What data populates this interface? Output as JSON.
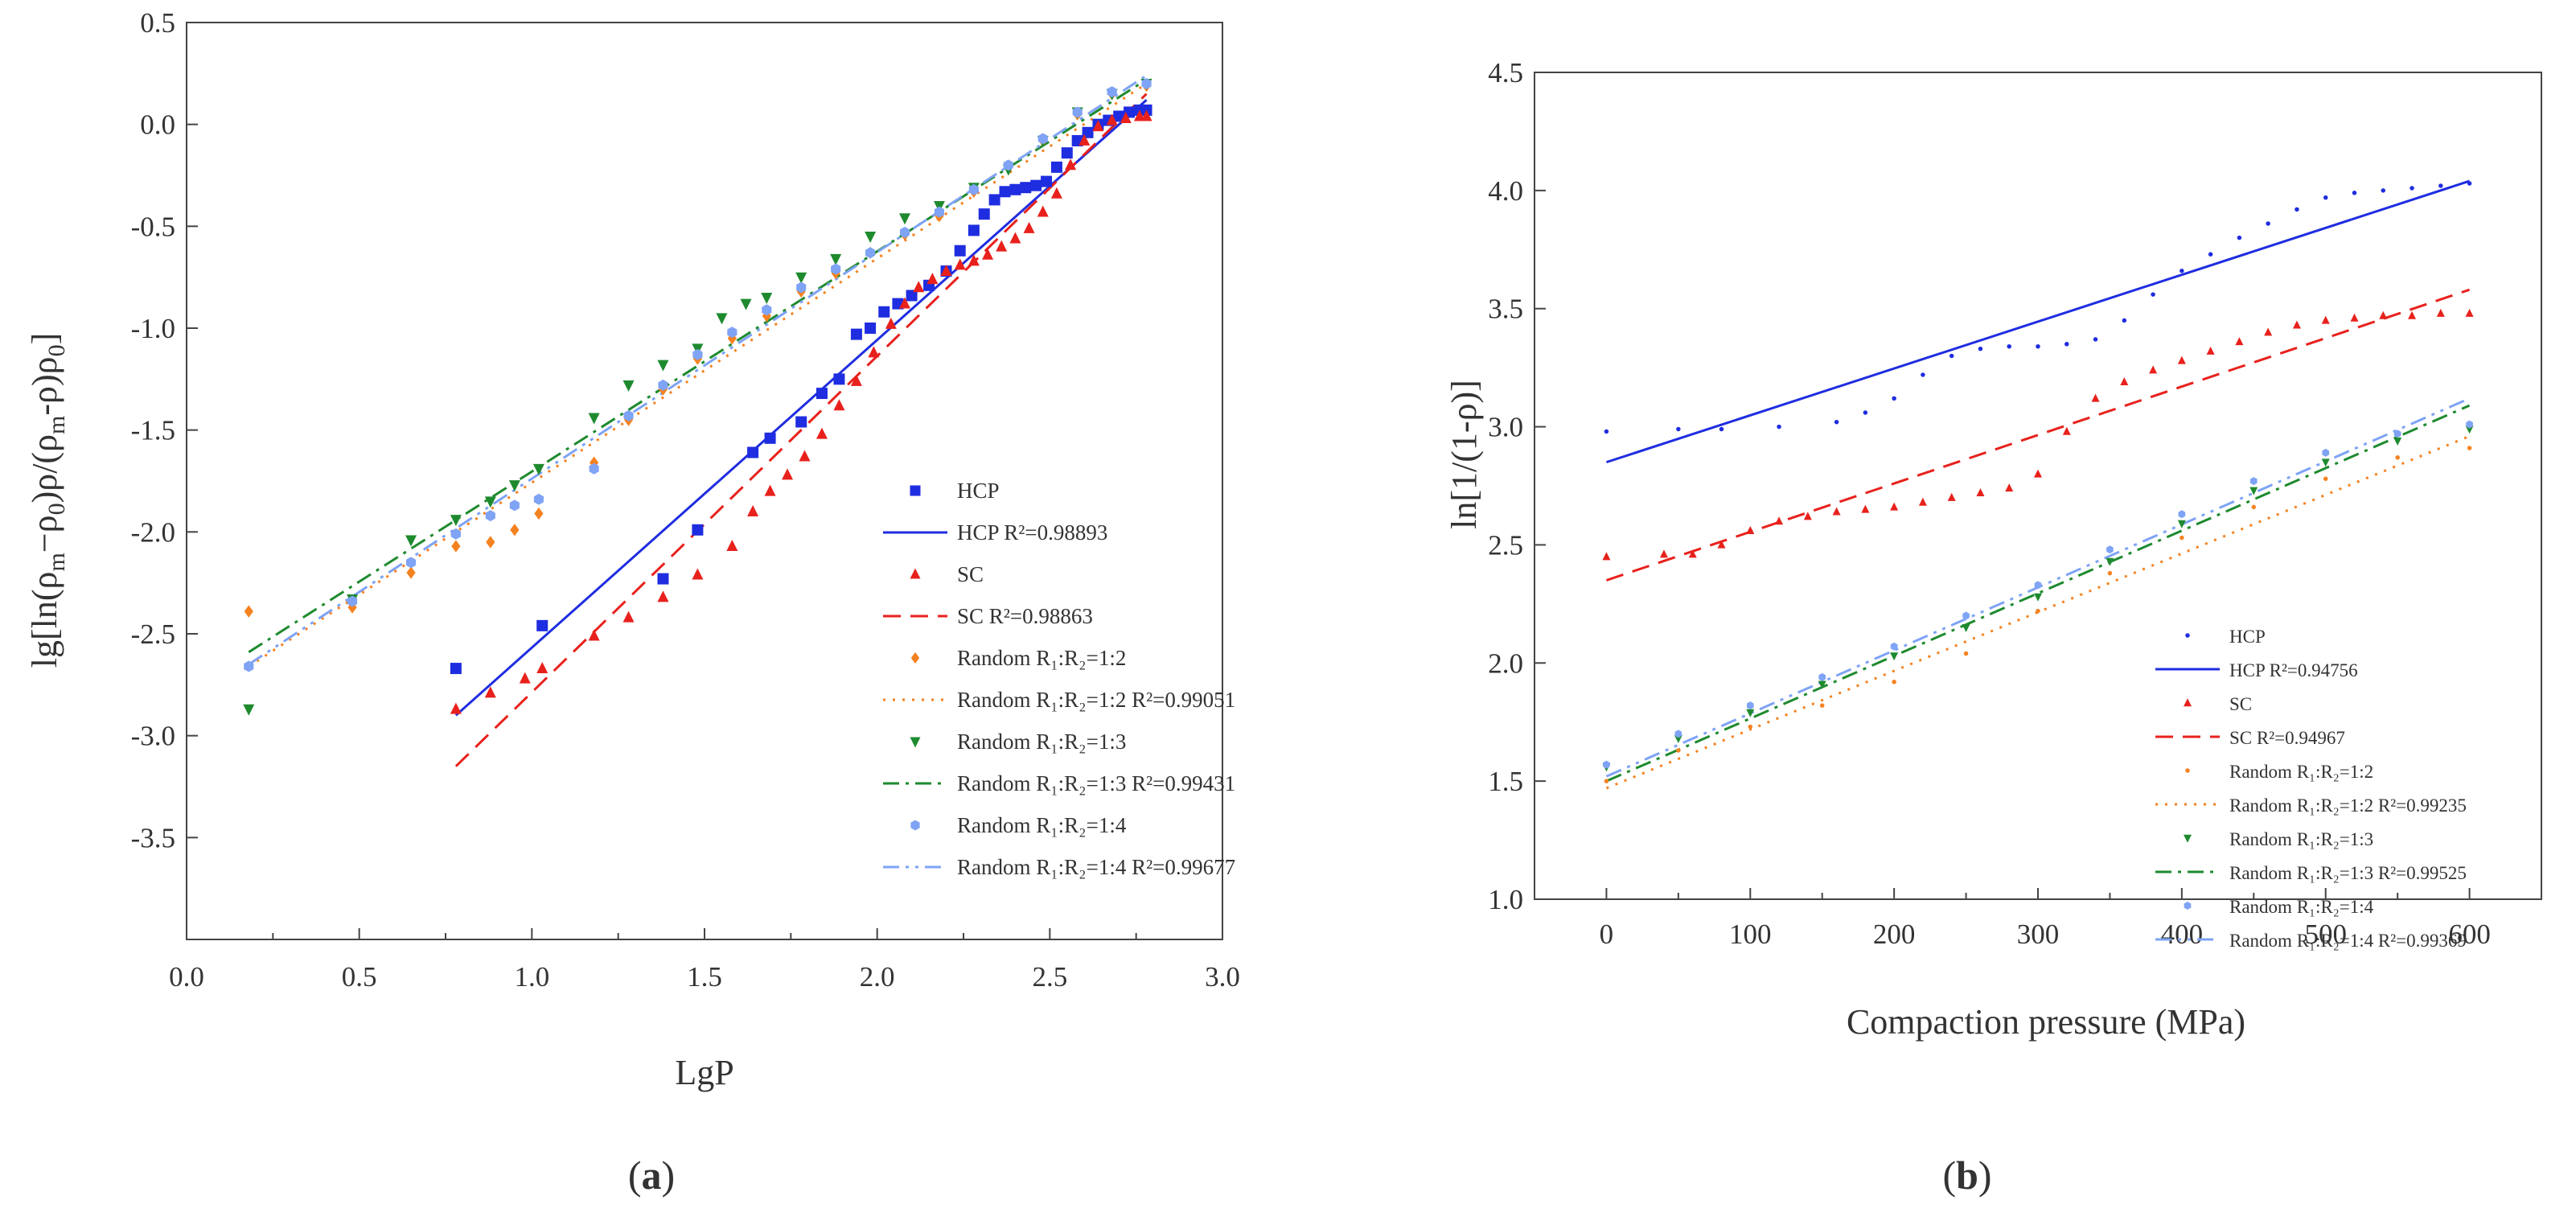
{
  "chart_data": [
    {
      "type": "scatter",
      "panel_label": "(a)",
      "panel_text": {
        "open": "(",
        "letter": "a",
        "close": ")"
      },
      "xlabel": "LgP",
      "ylabel": "lg[ln(ρm−ρ0)ρ/(ρm−ρ)ρ0]",
      "xlim": [
        0.0,
        3.0
      ],
      "ylim": [
        -4.0,
        0.5
      ],
      "xticks": [
        "0.0",
        "0.5",
        "1.0",
        "1.5",
        "2.0",
        "2.5",
        "3.0"
      ],
      "yticks": [
        "0.5",
        "0.0",
        "-0.5",
        "-1.0",
        "-1.5",
        "-2.0",
        "-2.5",
        "-3.0",
        "-3.5"
      ],
      "legend_position": "right",
      "legend": [
        "HCP",
        "HCP R²=0.98893",
        "SC",
        "SC R²=0.98863",
        "Random R₁:R₂=1:2",
        "Random R₁:R₂=1:2 R²=0.99051",
        "Random R₁:R₂=1:3",
        "Random R₁:R₂=1:3 R²=0.99431",
        "Random R₁:R₂=1:4",
        "Random R₁:R₂=1:4 R²=0.99677"
      ],
      "series": [
        {
          "name": "HCP",
          "color": "#1f2de0",
          "marker": "square",
          "x": [
            0.78,
            1.03,
            1.38,
            1.48,
            1.64,
            1.69,
            1.78,
            1.84,
            1.89,
            1.94,
            1.98,
            2.02,
            2.06,
            2.1,
            2.15,
            2.2,
            2.24,
            2.28,
            2.31,
            2.34,
            2.37,
            2.4,
            2.43,
            2.46,
            2.49,
            2.52,
            2.55,
            2.58,
            2.61,
            2.64,
            2.67,
            2.7,
            2.73,
            2.76,
            2.78
          ],
          "y": [
            -2.67,
            -2.46,
            -2.23,
            -1.99,
            -1.61,
            -1.54,
            -1.46,
            -1.32,
            -1.25,
            -1.03,
            -1.0,
            -0.92,
            -0.88,
            -0.84,
            -0.79,
            -0.72,
            -0.62,
            -0.52,
            -0.44,
            -0.37,
            -0.33,
            -0.32,
            -0.31,
            -0.3,
            -0.28,
            -0.21,
            -0.14,
            -0.08,
            -0.04,
            0.0,
            0.02,
            0.04,
            0.06,
            0.07,
            0.07
          ]
        },
        {
          "name": "SC",
          "color": "#e8211c",
          "marker": "triangle-up",
          "x": [
            0.78,
            0.88,
            0.98,
            1.03,
            1.18,
            1.28,
            1.38,
            1.48,
            1.58,
            1.64,
            1.69,
            1.74,
            1.79,
            1.84,
            1.89,
            1.94,
            1.99,
            2.04,
            2.08,
            2.12,
            2.16,
            2.2,
            2.24,
            2.28,
            2.32,
            2.36,
            2.4,
            2.44,
            2.48,
            2.52,
            2.56,
            2.6,
            2.64,
            2.68,
            2.72,
            2.76,
            2.78
          ],
          "y": [
            -2.87,
            -2.79,
            -2.72,
            -2.67,
            -2.51,
            -2.42,
            -2.32,
            -2.21,
            -2.07,
            -1.9,
            -1.8,
            -1.72,
            -1.63,
            -1.52,
            -1.38,
            -1.26,
            -1.12,
            -0.98,
            -0.88,
            -0.8,
            -0.76,
            -0.72,
            -0.69,
            -0.67,
            -0.64,
            -0.6,
            -0.56,
            -0.51,
            -0.43,
            -0.34,
            -0.2,
            -0.08,
            -0.01,
            0.02,
            0.03,
            0.04,
            0.04
          ]
        },
        {
          "name": "Random R₁:R₂=1:2",
          "color": "#f58220",
          "marker": "diamond",
          "x": [
            0.18,
            0.48,
            0.65,
            0.78,
            0.88,
            0.95,
            1.02,
            1.18,
            1.28,
            1.38,
            1.48,
            1.58,
            1.68,
            1.78,
            1.88,
            1.98,
            2.08,
            2.18,
            2.28,
            2.38,
            2.48,
            2.58,
            2.68,
            2.78
          ],
          "y": [
            -2.39,
            -2.37,
            -2.2,
            -2.07,
            -2.05,
            -1.99,
            -1.91,
            -1.66,
            -1.45,
            -1.3,
            -1.15,
            -1.05,
            -0.94,
            -0.82,
            -0.73,
            -0.63,
            -0.54,
            -0.45,
            -0.33,
            -0.21,
            -0.08,
            0.05,
            0.15,
            0.19
          ]
        },
        {
          "name": "Random R₁:R₂=1:3",
          "color": "#1e8a2e",
          "marker": "triangle-down",
          "x": [
            0.18,
            0.48,
            0.65,
            0.78,
            0.88,
            0.95,
            1.02,
            1.18,
            1.28,
            1.38,
            1.48,
            1.55,
            1.62,
            1.68,
            1.78,
            1.88,
            1.98,
            2.08,
            2.18,
            2.28,
            2.38,
            2.48,
            2.58,
            2.68,
            2.78
          ],
          "y": [
            -2.87,
            -2.33,
            -2.04,
            -1.94,
            -1.85,
            -1.77,
            -1.69,
            -1.44,
            -1.28,
            -1.18,
            -1.1,
            -0.95,
            -0.88,
            -0.85,
            -0.75,
            -0.66,
            -0.55,
            -0.46,
            -0.4,
            -0.31,
            -0.22,
            -0.08,
            0.06,
            0.15,
            0.2
          ]
        },
        {
          "name": "Random R₁:R₂=1:4",
          "color": "#7fa3f5",
          "marker": "hexagon",
          "x": [
            0.18,
            0.48,
            0.65,
            0.78,
            0.88,
            0.95,
            1.02,
            1.18,
            1.28,
            1.38,
            1.48,
            1.58,
            1.68,
            1.78,
            1.88,
            1.98,
            2.08,
            2.18,
            2.28,
            2.38,
            2.48,
            2.58,
            2.68,
            2.78
          ],
          "y": [
            -2.66,
            -2.34,
            -2.15,
            -2.01,
            -1.92,
            -1.87,
            -1.84,
            -1.69,
            -1.43,
            -1.28,
            -1.13,
            -1.02,
            -0.91,
            -0.8,
            -0.71,
            -0.63,
            -0.53,
            -0.43,
            -0.32,
            -0.2,
            -0.07,
            0.06,
            0.16,
            0.2
          ]
        }
      ],
      "fits": [
        {
          "name": "HCP R²=0.98893",
          "color": "#1f2de0",
          "dash": "solid",
          "x": [
            0.78,
            2.78
          ],
          "y": [
            -2.9,
            0.12
          ]
        },
        {
          "name": "SC R²=0.98863",
          "color": "#e8211c",
          "dash": "dashed",
          "x": [
            0.78,
            2.78
          ],
          "y": [
            -3.15,
            0.15
          ]
        },
        {
          "name": "Random R₁:R₂=1:2 R²=0.99051",
          "color": "#f58220",
          "dash": "dotted",
          "x": [
            0.18,
            2.78
          ],
          "y": [
            -2.66,
            0.2
          ]
        },
        {
          "name": "Random R₁:R₂=1:3 R²=0.99431",
          "color": "#1e8a2e",
          "dash": "dashdot",
          "x": [
            0.18,
            2.78
          ],
          "y": [
            -2.59,
            0.22
          ]
        },
        {
          "name": "Random R₁:R₂=1:4 R²=0.99677",
          "color": "#7fa3f5",
          "dash": "dashdotdot",
          "x": [
            0.18,
            2.78
          ],
          "y": [
            -2.65,
            0.24
          ]
        }
      ]
    },
    {
      "type": "scatter",
      "panel_label": "(b)",
      "panel_text": {
        "open": "(",
        "letter": "b",
        "close": ")"
      },
      "xlabel": "Compaction pressure (MPa)",
      "ylabel": "ln[1/(1-ρ)]",
      "xlim": [
        -50,
        650
      ],
      "ylim": [
        1.0,
        4.5
      ],
      "xticks": [
        "0",
        "100",
        "200",
        "300",
        "400",
        "500",
        "600"
      ],
      "yticks": [
        "4.5",
        "4.0",
        "3.5",
        "3.0",
        "2.5",
        "2.0",
        "1.5",
        "1.0"
      ],
      "legend_position": "lower-right",
      "legend": [
        "HCP",
        "HCP R²=0.94756",
        "SC",
        "SC R²=0.94967",
        "Random R₁:R₂=1:2",
        "Random R₁:R₂=1:2 R²=0.99235",
        "Random R₁:R₂=1:3",
        "Random R₁:R₂=1:3 R²=0.99525",
        "Random R₁:R₂=1:4",
        "Random R₁:R₂=1:4 R²=0.99369"
      ],
      "series": [
        {
          "name": "HCP",
          "color": "#1f2de0",
          "marker": "dot",
          "x": [
            0,
            50,
            80,
            120,
            160,
            180,
            200,
            220,
            240,
            260,
            280,
            300,
            320,
            340,
            360,
            380,
            400,
            420,
            440,
            460,
            480,
            500,
            520,
            540,
            560,
            580,
            600
          ],
          "y": [
            2.98,
            2.99,
            2.99,
            3.0,
            3.02,
            3.06,
            3.12,
            3.22,
            3.3,
            3.33,
            3.34,
            3.34,
            3.35,
            3.37,
            3.45,
            3.56,
            3.66,
            3.73,
            3.8,
            3.86,
            3.92,
            3.97,
            3.99,
            4.0,
            4.01,
            4.02,
            4.03
          ]
        },
        {
          "name": "SC",
          "color": "#e8211c",
          "marker": "triangle-up",
          "x": [
            0,
            40,
            60,
            80,
            100,
            120,
            140,
            160,
            180,
            200,
            220,
            240,
            260,
            280,
            300,
            320,
            340,
            360,
            380,
            400,
            420,
            440,
            460,
            480,
            500,
            520,
            540,
            560,
            580,
            600
          ],
          "y": [
            2.45,
            2.46,
            2.46,
            2.5,
            2.56,
            2.6,
            2.62,
            2.64,
            2.65,
            2.66,
            2.68,
            2.7,
            2.72,
            2.74,
            2.8,
            2.98,
            3.12,
            3.19,
            3.24,
            3.28,
            3.32,
            3.36,
            3.4,
            3.43,
            3.45,
            3.46,
            3.47,
            3.47,
            3.48,
            3.48
          ]
        },
        {
          "name": "Random R₁:R₂=1:2",
          "color": "#f58220",
          "marker": "dot",
          "x": [
            0,
            50,
            100,
            150,
            200,
            250,
            300,
            350,
            400,
            450,
            500,
            550,
            600
          ],
          "y": [
            1.5,
            1.63,
            1.73,
            1.82,
            1.92,
            2.04,
            2.22,
            2.38,
            2.53,
            2.66,
            2.78,
            2.87,
            2.91
          ]
        },
        {
          "name": "Random R₁:R₂=1:3",
          "color": "#1e8a2e",
          "marker": "triangle-down",
          "x": [
            0,
            50,
            100,
            150,
            200,
            250,
            300,
            350,
            400,
            450,
            500,
            550,
            600
          ],
          "y": [
            1.56,
            1.68,
            1.79,
            1.91,
            2.03,
            2.15,
            2.28,
            2.43,
            2.59,
            2.73,
            2.85,
            2.94,
            2.99
          ]
        },
        {
          "name": "Random R₁:R₂=1:4",
          "color": "#7fa3f5",
          "marker": "hexagon",
          "x": [
            0,
            50,
            100,
            150,
            200,
            250,
            300,
            350,
            400,
            450,
            500,
            550,
            600
          ],
          "y": [
            1.57,
            1.7,
            1.82,
            1.94,
            2.07,
            2.2,
            2.33,
            2.48,
            2.63,
            2.77,
            2.89,
            2.97,
            3.01
          ]
        }
      ],
      "fits": [
        {
          "name": "HCP R²=0.94756",
          "color": "#1f2de0",
          "dash": "solid",
          "x": [
            0,
            600
          ],
          "y": [
            2.85,
            4.04
          ]
        },
        {
          "name": "SC R²=0.94967",
          "color": "#e8211c",
          "dash": "dashed",
          "x": [
            0,
            600
          ],
          "y": [
            2.35,
            3.58
          ]
        },
        {
          "name": "Random R₁:R₂=1:2 R²=0.99235",
          "color": "#f58220",
          "dash": "dotted",
          "x": [
            0,
            600
          ],
          "y": [
            1.47,
            2.96
          ]
        },
        {
          "name": "Random R₁:R₂=1:3 R²=0.99525",
          "color": "#1e8a2e",
          "dash": "dashdot",
          "x": [
            0,
            600
          ],
          "y": [
            1.5,
            3.09
          ]
        },
        {
          "name": "Random R₁:R₂=1:4 R²=0.99369",
          "color": "#7fa3f5",
          "dash": "dashdotdot",
          "x": [
            0,
            600
          ],
          "y": [
            1.52,
            3.12
          ]
        }
      ]
    }
  ]
}
